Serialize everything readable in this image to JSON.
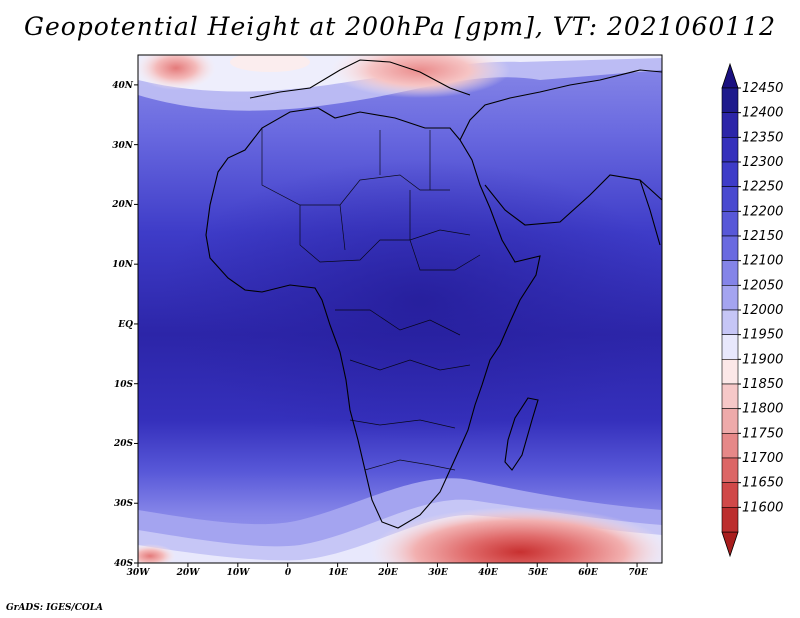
{
  "title": "Geopotential Height at 200hPa [gpm], VT: 2021060112",
  "footer": "GrADS: IGES/COLA",
  "map": {
    "lon_labels": [
      "30W",
      "20W",
      "10W",
      "0",
      "10E",
      "20E",
      "30E",
      "40E",
      "50E",
      "60E",
      "70E"
    ],
    "lat_labels": [
      "40N",
      "30N",
      "20N",
      "10N",
      "EQ",
      "10S",
      "20S",
      "30S",
      "40S"
    ],
    "lon_range": [
      -30,
      75
    ],
    "lat_range": [
      -40,
      45
    ]
  },
  "colorbar": {
    "levels": [
      "12450",
      "12400",
      "12350",
      "12300",
      "12250",
      "12200",
      "12150",
      "12100",
      "12050",
      "12000",
      "11950",
      "11900",
      "11850",
      "11800",
      "11750",
      "11700",
      "11650",
      "11600"
    ],
    "colors": [
      "#1e1a8c",
      "#2c25a8",
      "#3530bc",
      "#3e3cc8",
      "#4a4ad0",
      "#5858d8",
      "#6a6ae0",
      "#8484e8",
      "#a4a4f0",
      "#c6c6f6",
      "#e8e8fc",
      "#fce8e8",
      "#f6c8c8",
      "#eeaaaa",
      "#e68888",
      "#dc6666",
      "#d04848",
      "#bc2e2e"
    ],
    "top_cap": "#1a1080",
    "bottom_cap": "#a81e1e"
  }
}
